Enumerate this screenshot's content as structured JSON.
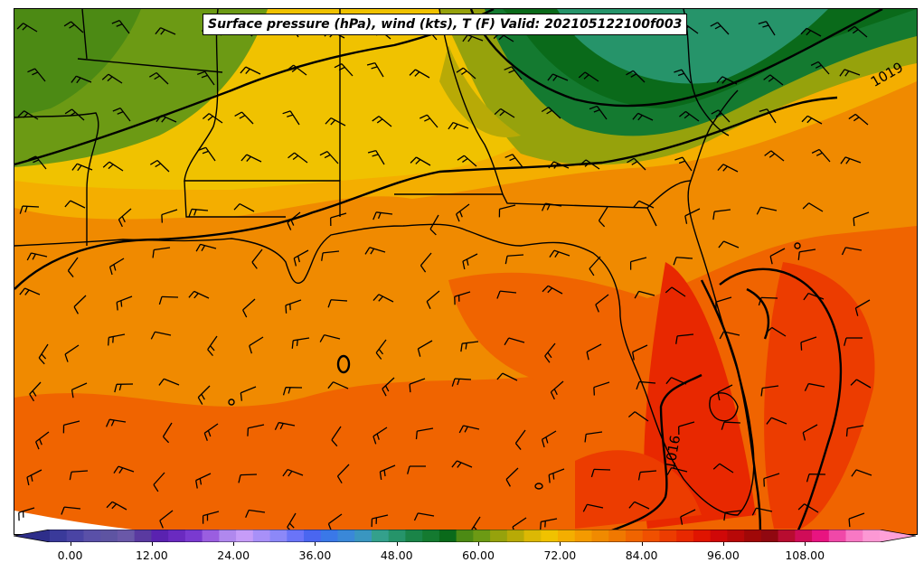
{
  "title": "Surface pressure (hPa), wind (kts), T (F) Valid: 202105122100f003",
  "isobar_labels": [
    "1019",
    "1016"
  ],
  "colorbar": {
    "ticks": [
      "0.00",
      "12.00",
      "24.00",
      "36.00",
      "48.00",
      "60.00",
      "72.00",
      "84.00",
      "96.00",
      "108.00"
    ],
    "tick_values": [
      0,
      12,
      24,
      36,
      48,
      60,
      72,
      84,
      96,
      108
    ],
    "range": [
      -6,
      122
    ],
    "step": 3,
    "colors": [
      "#3a3a9a",
      "#4a44a4",
      "#5a50a8",
      "#5e54a2",
      "#6a58a8",
      "#5a3aa0",
      "#5a22b0",
      "#6a2ac0",
      "#7a3ad0",
      "#9a5ee0",
      "#b088ee",
      "#c69cf8",
      "#a890f8",
      "#8c88f8",
      "#6a74f8",
      "#4a66f0",
      "#3a78e8",
      "#3a88d8",
      "#3a96c0",
      "#34a08c",
      "#26946a",
      "#1a8448",
      "#147a30",
      "#0a6a1a",
      "#4c8a14",
      "#6c9a14",
      "#96a20c",
      "#b8aa06",
      "#dcb804",
      "#f0c200",
      "#f4ae00",
      "#f49a00",
      "#f08a00",
      "#f07800",
      "#f06400",
      "#f05000",
      "#ec3c00",
      "#e82800",
      "#e01400",
      "#d00808",
      "#b80808",
      "#a00808",
      "#900810",
      "#b80c30",
      "#d00c58",
      "#e81480",
      "#f048a8",
      "#f878c4",
      "#fc98d4"
    ],
    "extend_low_color": "#2e2e8a",
    "extend_high_color": "#ffa0d8"
  },
  "colors": {
    "coast": "#000000",
    "isobar": "#000000",
    "barb": "#000000"
  }
}
